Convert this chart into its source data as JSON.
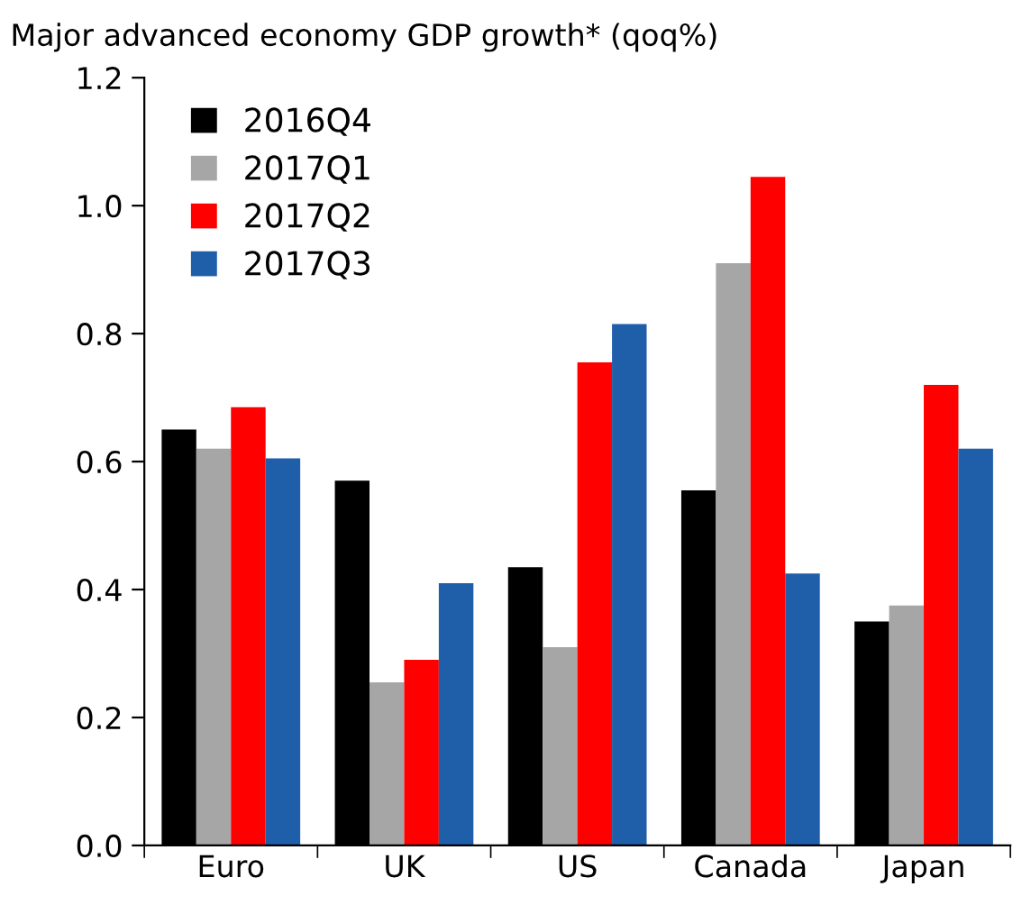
{
  "chart_data": {
    "type": "bar",
    "title": "Major advanced economy GDP growth* (qoq%)",
    "categories": [
      "Euro",
      "UK",
      "US",
      "Canada",
      "Japan"
    ],
    "series": [
      {
        "name": "2016Q4",
        "color": "#000000",
        "values": [
          0.65,
          0.57,
          0.435,
          0.555,
          0.35
        ]
      },
      {
        "name": "2017Q1",
        "color": "#a6a6a6",
        "values": [
          0.62,
          0.255,
          0.31,
          0.91,
          0.375
        ]
      },
      {
        "name": "2017Q2",
        "color": "#ff0000",
        "values": [
          0.685,
          0.29,
          0.755,
          1.045,
          0.72
        ]
      },
      {
        "name": "2017Q3",
        "color": "#1f5faa",
        "values": [
          0.605,
          0.41,
          0.815,
          0.425,
          0.62
        ]
      }
    ],
    "ylim": [
      0,
      1.2
    ],
    "yticks": [
      {
        "value": 0,
        "label": "0.0"
      },
      0.2,
      0.4,
      0.6,
      0.8,
      {
        "value": 1.0,
        "label": "1.0"
      },
      1.2
    ],
    "grid": false,
    "legend": "top left"
  }
}
